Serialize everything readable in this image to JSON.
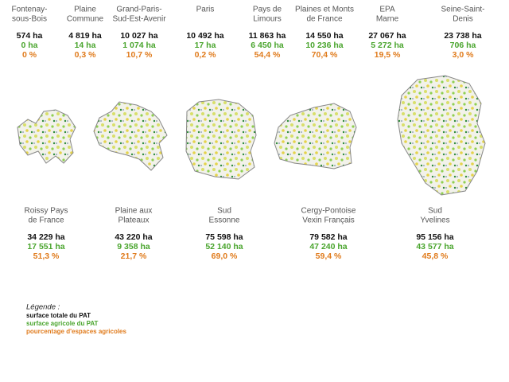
{
  "territories_top": [
    {
      "name": [
        "Fontenay-",
        "sous-Bois"
      ],
      "total": "574 ha",
      "agricultural": "0 ha",
      "share": "0 %"
    },
    {
      "name": [
        "Plaine",
        "Commune"
      ],
      "total": "4 819 ha",
      "agricultural": "14 ha",
      "share": "0,3 %"
    },
    {
      "name": [
        "Grand-Paris-",
        "Sud-Est-Avenir"
      ],
      "total": "10 027 ha",
      "agricultural": "1 074 ha",
      "share": "10,7 %"
    },
    {
      "name": [
        "Paris"
      ],
      "total": "10 492 ha",
      "agricultural": "17 ha",
      "share": "0,2 %"
    },
    {
      "name": [
        "Pays de",
        "Limours"
      ],
      "total": "11 863 ha",
      "agricultural": "6 450 ha",
      "share": "54,4 %"
    },
    {
      "name": [
        "Plaines et Monts",
        "de France"
      ],
      "total": "14 550 ha",
      "agricultural": "10 236 ha",
      "share": "70,4 %"
    },
    {
      "name": [
        "EPA",
        "Marne"
      ],
      "total": "27 067 ha",
      "agricultural": "5 272 ha",
      "share": "19,5 %"
    },
    {
      "name": [
        "Seine-Saint-",
        "Denis"
      ],
      "total": "23 738 ha",
      "agricultural": "706 ha",
      "share": "3,0 %"
    }
  ],
  "territories_bottom": [
    {
      "name": [
        "Roissy Pays",
        "de France"
      ],
      "total": "34 229 ha",
      "agricultural": "17 551 ha",
      "share": "51,3 %"
    },
    {
      "name": [
        "Plaine aux",
        "Plateaux"
      ],
      "total": "43 220 ha",
      "agricultural": "9 358 ha",
      "share": "21,7 %"
    },
    {
      "name": [
        "Sud",
        "Essonne"
      ],
      "total": "75 598 ha",
      "agricultural": "52 140 ha",
      "share": "69,0 %"
    },
    {
      "name": [
        "Cergy-Pontoise",
        "Vexin Français"
      ],
      "total": "79 582 ha",
      "agricultural": "47 240 ha",
      "share": "59,4 %"
    },
    {
      "name": [
        "Sud",
        "Yvelines"
      ],
      "total": "95 156 ha",
      "agricultural": "43 577 ha",
      "share": "45,8 %"
    }
  ],
  "legend": {
    "title": "Légende :",
    "total": "surface totale du PAT",
    "agricultural": "surface agricole du PAT",
    "share": "pourcentage d'espaces agricoles"
  }
}
